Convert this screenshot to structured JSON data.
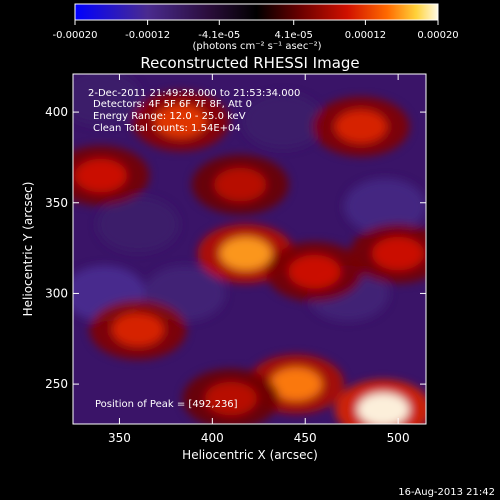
{
  "chart_data": {
    "type": "heatmap",
    "title": "Reconstructed RHESSI Image",
    "xlabel": "Heliocentric X (arcsec)",
    "ylabel": "Heliocentric Y (arcsec)",
    "xlim": [
      325,
      515
    ],
    "ylim": [
      228,
      421
    ],
    "xticks": [
      350,
      400,
      450,
      500
    ],
    "yticks": [
      250,
      300,
      350,
      400
    ],
    "x_tick_labels": [
      "350",
      "400",
      "450",
      "500"
    ],
    "y_tick_labels": [
      "250",
      "300",
      "350",
      "400"
    ],
    "colorbar": {
      "range": [
        -0.0002,
        0.0002
      ],
      "ticks": [
        -0.0002,
        -0.00012,
        -4.1e-05,
        4.1e-05,
        0.00012,
        0.0002
      ],
      "tick_labels": [
        "-0.00020",
        "-0.00012",
        "-4.1e-05",
        "4.1e-05",
        "0.00012",
        "0.00020"
      ],
      "unit_label": "(photons cm⁻² s⁻¹ asec⁻²)",
      "colormap": [
        "#0000ff",
        "#4a2b8f",
        "#2a0d3a",
        "#000000",
        "#6a0000",
        "#d01000",
        "#ff6a00",
        "#ffd23a",
        "#fffbe6"
      ]
    },
    "annotations": [
      "2-Dec-2011 21:49:28.000 to 21:53:34.000",
      "Detectors: 4F 5F 6F 7F 8F, Att 0",
      "Energy Range: 12.0 - 25.0 keV",
      "Clean    Total counts: 1.54E+04",
      "Position of Peak = [492,236]"
    ],
    "peak": [
      492,
      236
    ],
    "bright_sources": [
      {
        "x": 418,
        "y": 322,
        "value": 0.00016
      },
      {
        "x": 445,
        "y": 250,
        "value": 0.00015
      },
      {
        "x": 383,
        "y": 395,
        "value": 0.00012
      },
      {
        "x": 480,
        "y": 392,
        "value": 0.00011
      },
      {
        "x": 492,
        "y": 236,
        "value": 0.0002
      },
      {
        "x": 360,
        "y": 280,
        "value": 0.00011
      },
      {
        "x": 455,
        "y": 312,
        "value": 0.0001
      },
      {
        "x": 500,
        "y": 322,
        "value": 0.0001
      },
      {
        "x": 340,
        "y": 365,
        "value": 0.0001
      },
      {
        "x": 415,
        "y": 360,
        "value": 9e-05
      },
      {
        "x": 410,
        "y": 242,
        "value": 9e-05
      }
    ],
    "dark_sources": [
      {
        "x": 342,
        "y": 300,
        "value": -0.00012
      },
      {
        "x": 493,
        "y": 348,
        "value": -0.00011
      },
      {
        "x": 473,
        "y": 300,
        "value": -0.0001
      },
      {
        "x": 340,
        "y": 408,
        "value": -9e-05
      },
      {
        "x": 438,
        "y": 395,
        "value": -9e-05
      },
      {
        "x": 385,
        "y": 300,
        "value": -0.0001
      },
      {
        "x": 360,
        "y": 338,
        "value": -9e-05
      }
    ]
  },
  "footer": {
    "timestamp": "16-Aug-2013 21:42"
  }
}
